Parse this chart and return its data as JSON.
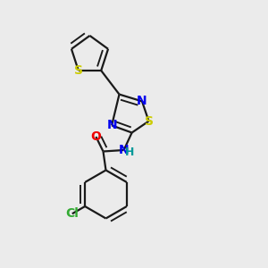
{
  "background_color": "#ebebeb",
  "bond_color": "#1a1a1a",
  "bond_width": 1.6,
  "dbo": 0.018,
  "atom_colors": {
    "S": "#cccc00",
    "N": "#0000ee",
    "O": "#ee0000",
    "Cl": "#33aa33",
    "H": "#009999"
  },
  "font_size": 10
}
